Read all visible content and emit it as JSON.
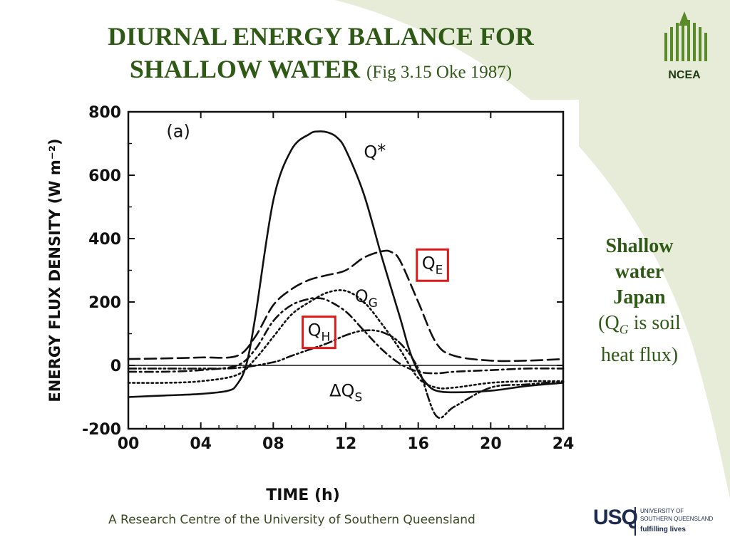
{
  "slide": {
    "title_line1": "DIURNAL ENERGY BALANCE FOR",
    "title_line2": "SHALLOW WATER",
    "title_cite": "(Fig 3.15 Oke 1987)",
    "logo_ncea": "NCEA",
    "side_bold": [
      "Shallow",
      "water",
      "Japan"
    ],
    "side_note_prefix": "(Q",
    "side_note_sub": "G",
    "side_note_suffix": " is soil",
    "side_note_line2": "heat flux)",
    "footer": "A Research Centre of the University of Southern Queensland",
    "usq_word": "USQ",
    "usq_name_line1": "UNIVERSITY OF",
    "usq_name_line2": "SOUTHERN QUEENSLAND",
    "usq_tagline": "fulfilling lives",
    "colors": {
      "title_green": "#2f5a16",
      "highlight_box": "#e01a1a",
      "swoosh": "#e6ecd8"
    }
  },
  "chart_data": {
    "type": "line",
    "panel_label": "(a)",
    "xlabel": "TIME (h)",
    "ylabel": "ENERGY FLUX DENSITY (W m⁻²)",
    "xlim": [
      0,
      24
    ],
    "ylim": [
      -200,
      800
    ],
    "xticks": [
      0,
      4,
      8,
      12,
      16,
      20,
      24
    ],
    "xtick_labels": [
      "00",
      "04",
      "08",
      "12",
      "16",
      "20",
      "24"
    ],
    "yticks": [
      -200,
      0,
      200,
      400,
      600,
      800
    ],
    "ytick_labels": [
      "-200",
      "0",
      "200",
      "400",
      "600",
      "800"
    ],
    "zero_line": true,
    "grid": false,
    "series": [
      {
        "name": "Q*",
        "label_main": "Q",
        "label_sub": "*",
        "style": "solid",
        "x": [
          0,
          2,
          4,
          5.5,
          6,
          6.5,
          7,
          8,
          9,
          10,
          10.5,
          11,
          11.5,
          12,
          13,
          14,
          15,
          15.5,
          16,
          16.5,
          17,
          18,
          20,
          22,
          24
        ],
        "y": [
          -100,
          -95,
          -90,
          -80,
          -60,
          0,
          150,
          520,
          680,
          730,
          738,
          735,
          720,
          680,
          540,
          340,
          150,
          50,
          -20,
          -60,
          -80,
          -85,
          -80,
          -65,
          -55
        ]
      },
      {
        "name": "QE",
        "label_main": "Q",
        "label_sub": "E",
        "style": "longdash",
        "highlighted": true,
        "x": [
          0,
          2,
          4,
          6,
          7,
          8,
          9,
          10,
          11,
          12,
          13,
          14,
          14.5,
          15,
          16,
          17,
          18,
          20,
          22,
          24
        ],
        "y": [
          20,
          22,
          25,
          30,
          90,
          190,
          240,
          270,
          285,
          300,
          340,
          360,
          358,
          330,
          200,
          70,
          30,
          15,
          15,
          20
        ]
      },
      {
        "name": "QG",
        "label_main": "Q",
        "label_sub": "G",
        "style": "dotted",
        "x": [
          0,
          2,
          4,
          6,
          7,
          8,
          9,
          10,
          11,
          12,
          13,
          14,
          15,
          16,
          17,
          18,
          20,
          22,
          24
        ],
        "y": [
          -55,
          -55,
          -50,
          -30,
          20,
          90,
          160,
          200,
          230,
          235,
          200,
          130,
          50,
          -40,
          -70,
          -70,
          -55,
          -50,
          -50
        ]
      },
      {
        "name": "QH",
        "label_main": "Q",
        "label_sub": "H",
        "style": "dashdot",
        "highlighted": true,
        "x": [
          0,
          2,
          4,
          6,
          7,
          8,
          9,
          10,
          10.5,
          11,
          12,
          13,
          14,
          15,
          16,
          17,
          18,
          20,
          22,
          24
        ],
        "y": [
          -20,
          -20,
          -15,
          0,
          50,
          140,
          190,
          210,
          212,
          205,
          170,
          110,
          50,
          5,
          -20,
          -25,
          -20,
          -15,
          -10,
          -10
        ]
      },
      {
        "name": "ΔQS",
        "label_main": "ΔQ",
        "label_sub": "S",
        "style": "dashdotdot",
        "x": [
          0,
          2,
          4,
          6,
          8,
          9,
          10,
          11,
          12,
          13,
          14,
          15,
          16,
          17,
          18,
          20,
          22,
          24
        ],
        "y": [
          -10,
          -10,
          -10,
          -8,
          10,
          30,
          50,
          70,
          95,
          110,
          105,
          70,
          -10,
          -160,
          -130,
          -70,
          -60,
          -50
        ]
      }
    ]
  }
}
